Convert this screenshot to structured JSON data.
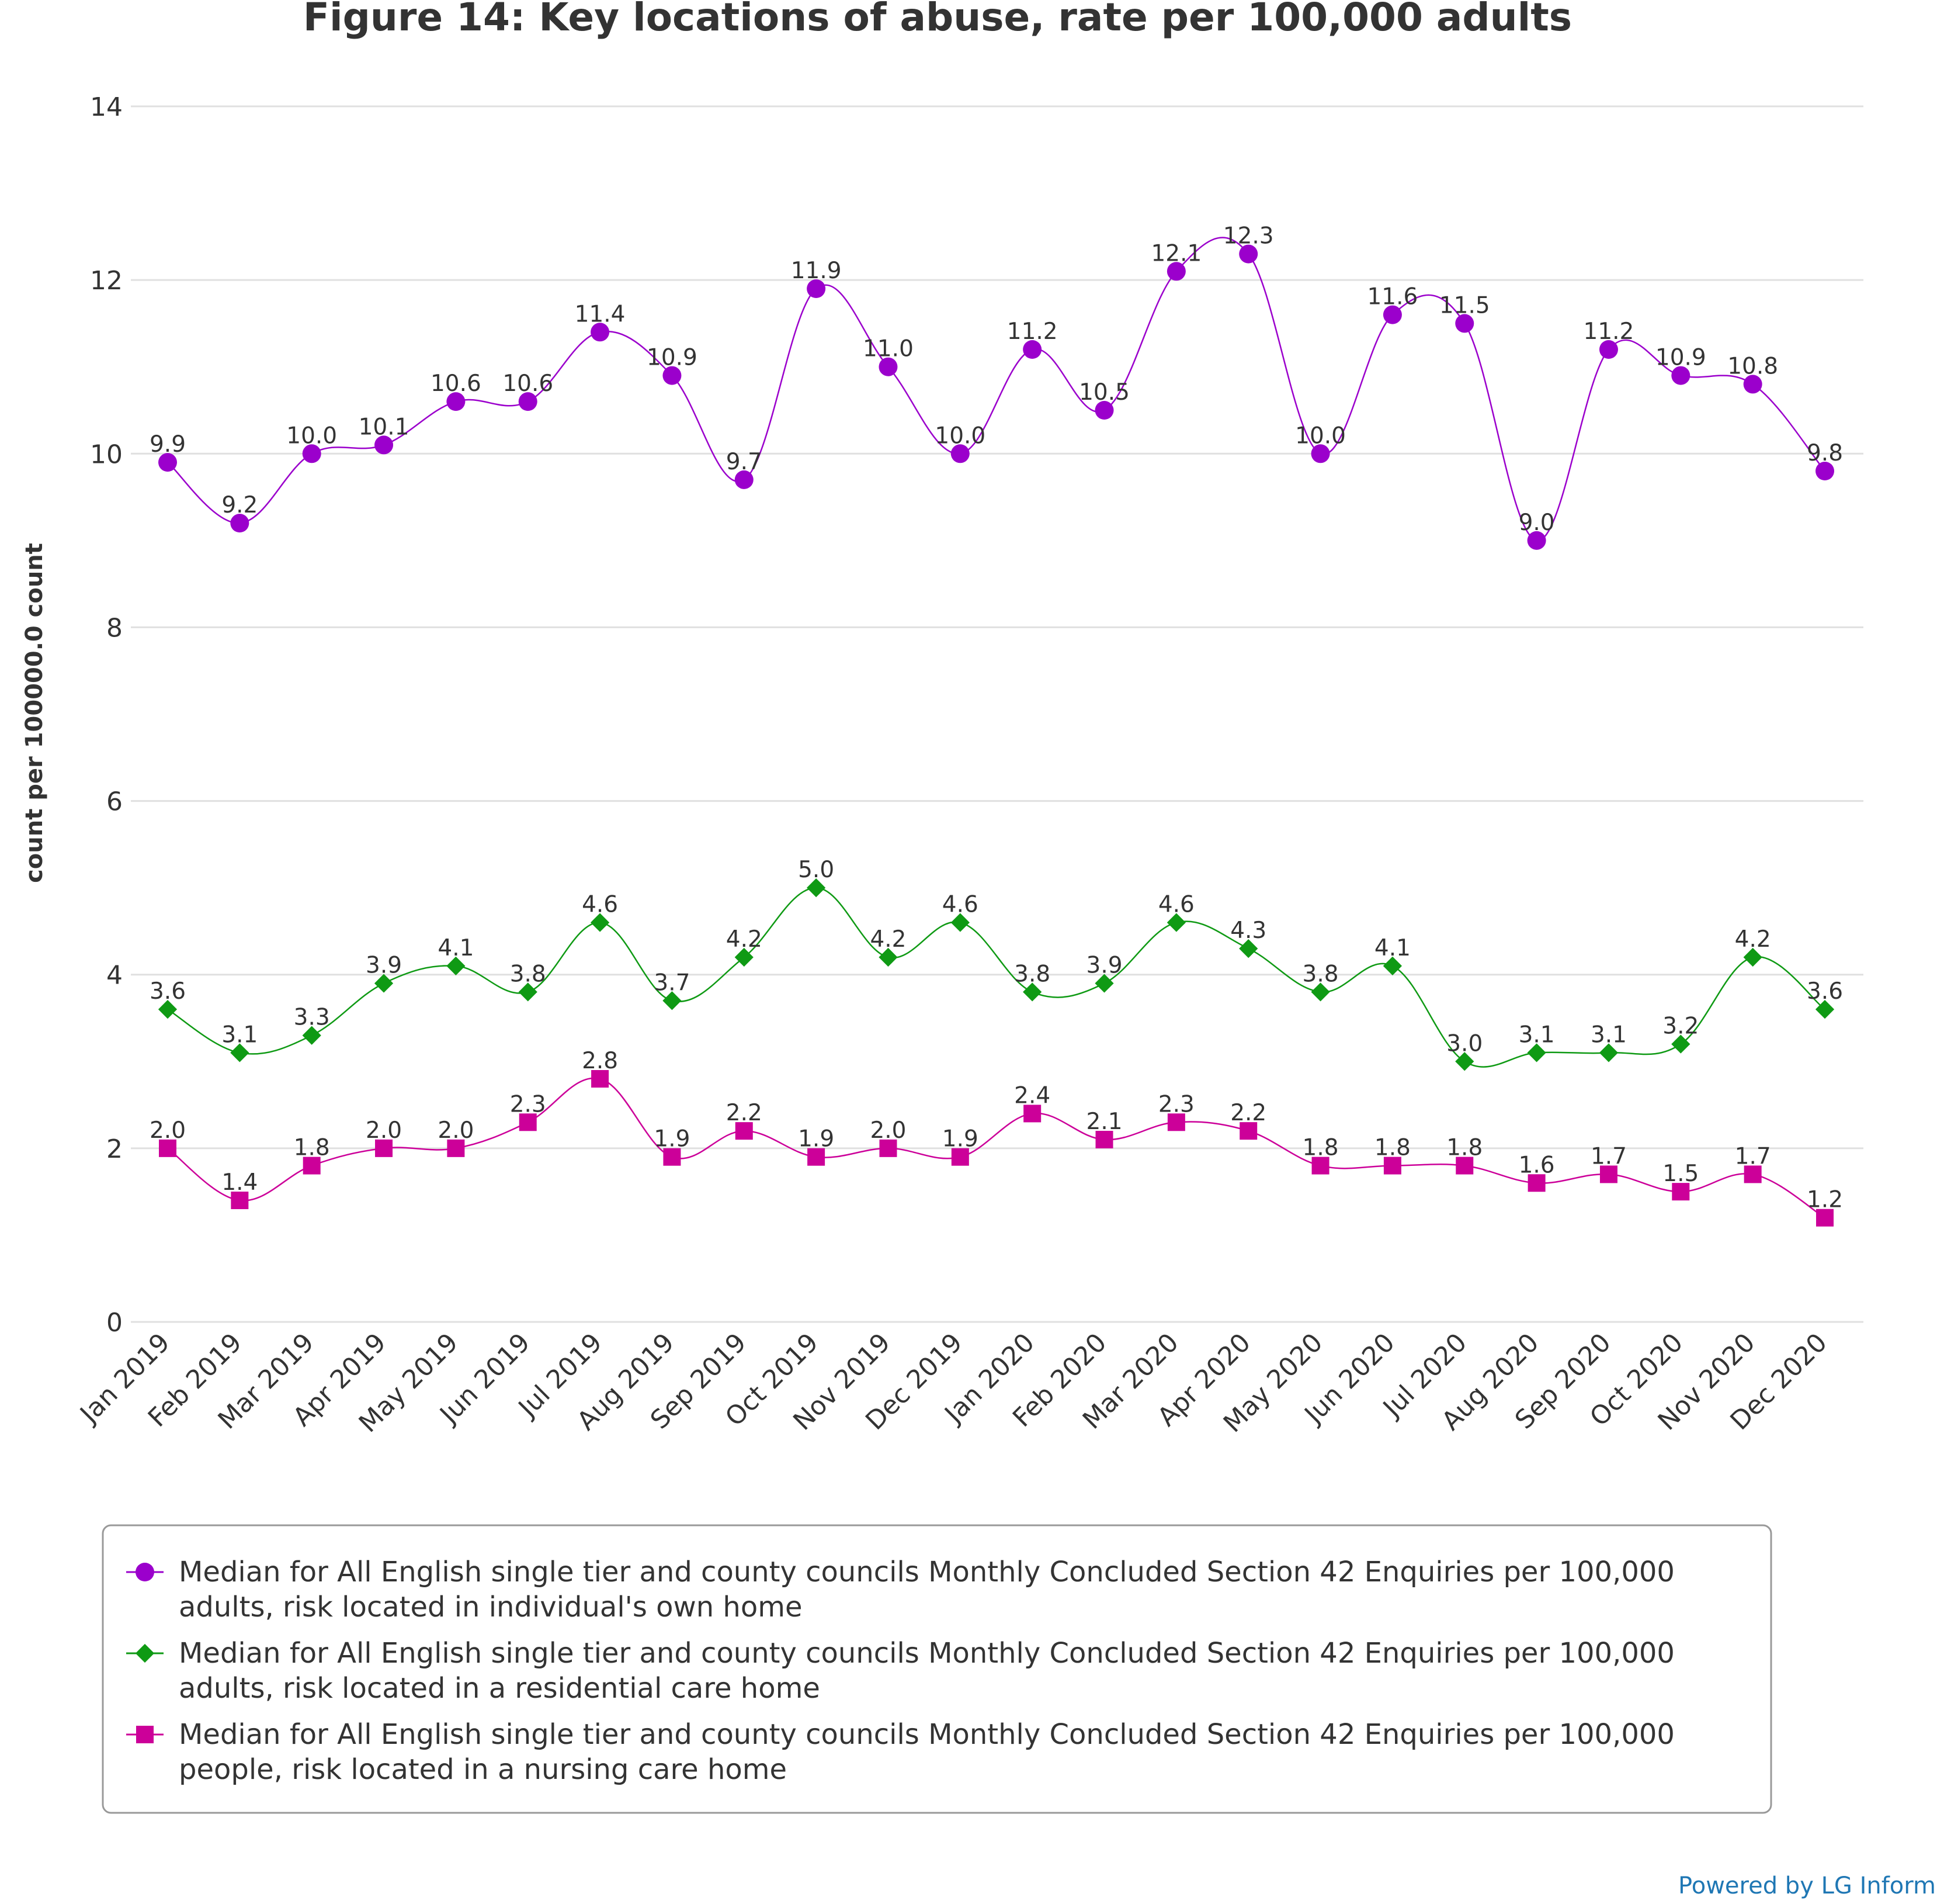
{
  "chart_data": {
    "type": "line",
    "title": "Figure 14: Key locations of abuse, rate per 100,000 adults",
    "ylabel": "count per 100000.0 count",
    "xlabel": "",
    "ylim": [
      0,
      14
    ],
    "yticks": [
      0,
      2,
      4,
      6,
      8,
      10,
      12,
      14
    ],
    "grid": true,
    "legend_position": "bottom",
    "categories": [
      "Jan 2019",
      "Feb 2019",
      "Mar 2019",
      "Apr 2019",
      "May 2019",
      "Jun 2019",
      "Jul 2019",
      "Aug 2019",
      "Sep 2019",
      "Oct 2019",
      "Nov 2019",
      "Dec 2019",
      "Jan 2020",
      "Feb 2020",
      "Mar 2020",
      "Apr 2020",
      "May 2020",
      "Jun 2020",
      "Jul 2020",
      "Aug 2020",
      "Sep 2020",
      "Oct 2020",
      "Nov 2020",
      "Dec 2020"
    ],
    "series": [
      {
        "name": "Median for All English single tier and county councils Monthly Concluded Section 42 Enquiries per 100,000 adults, risk located in individual's own home",
        "legend_lines": [
          "Median for All English single tier and county councils Monthly Concluded Section 42 Enquiries per 100,000",
          "adults, risk located in individual's own home"
        ],
        "color": "#9b00cc",
        "marker": "circle",
        "values": [
          9.9,
          9.2,
          10.0,
          10.1,
          10.6,
          10.6,
          11.4,
          10.9,
          9.7,
          11.9,
          11.0,
          10.0,
          11.2,
          10.5,
          12.1,
          12.3,
          10.0,
          11.6,
          11.5,
          9.0,
          11.2,
          10.9,
          10.8,
          9.8
        ],
        "labels": [
          "9.9",
          "9.2",
          "10.0",
          "10.1",
          "10.6",
          "10.6",
          "11.4",
          "10.9",
          "9.7",
          "11.9",
          "11.0",
          "10.0",
          "11.2",
          "10.5",
          "12.1",
          "12.3",
          "10.0",
          "11.6",
          "11.5",
          "9.0",
          "11.2",
          "10.9",
          "10.8",
          "9.8"
        ]
      },
      {
        "name": "Median for All English single tier and county councils Monthly Concluded Section 42 Enquiries per 100,000 adults, risk located in a residential care home",
        "legend_lines": [
          "Median for All English single tier and county councils Monthly Concluded Section 42 Enquiries per 100,000",
          "adults, risk located in a residential care home"
        ],
        "color": "#0f9a14",
        "marker": "diamond",
        "values": [
          3.6,
          3.1,
          3.3,
          3.9,
          4.1,
          3.8,
          4.6,
          3.7,
          4.2,
          5.0,
          4.2,
          4.6,
          3.8,
          3.9,
          4.6,
          4.3,
          3.8,
          4.1,
          3.0,
          3.1,
          3.1,
          3.2,
          4.2,
          3.6
        ],
        "labels": [
          "3.6",
          "3.1",
          "3.3",
          "3.9",
          "4.1",
          "3.8",
          "4.6",
          "3.7",
          "4.2",
          "5.0",
          "4.2",
          "4.6",
          "3.8",
          "3.9",
          "4.6",
          "4.3",
          "3.8",
          "4.1",
          "3.0",
          "3.1",
          "3.1",
          "3.2",
          "4.2",
          "3.6"
        ]
      },
      {
        "name": "Median for All English single tier and county councils Monthly Concluded Section 42 Enquiries per 100,000 people, risk located in a nursing care home",
        "legend_lines": [
          "Median for All English single tier and county councils Monthly Concluded Section 42 Enquiries per 100,000",
          "people, risk located in a nursing care home"
        ],
        "color": "#cc0099",
        "marker": "square",
        "values": [
          2.0,
          1.4,
          1.8,
          2.0,
          2.0,
          2.3,
          2.8,
          1.9,
          2.2,
          1.9,
          2.0,
          1.9,
          2.4,
          2.1,
          2.3,
          2.2,
          1.8,
          1.8,
          1.8,
          1.6,
          1.7,
          1.5,
          1.7,
          1.2
        ],
        "labels": [
          "2.0",
          "1.4",
          "1.8",
          "2.0",
          "2.0",
          "2.3",
          "2.8",
          "1.9",
          "2.2",
          "1.9",
          "2.0",
          "1.9",
          "2.4",
          "2.1",
          "2.3",
          "2.2",
          "1.8",
          "1.8",
          "1.8",
          "1.6",
          "1.7",
          "1.5",
          "1.7",
          "1.2"
        ]
      }
    ]
  },
  "credit": "Powered by LG Inform"
}
